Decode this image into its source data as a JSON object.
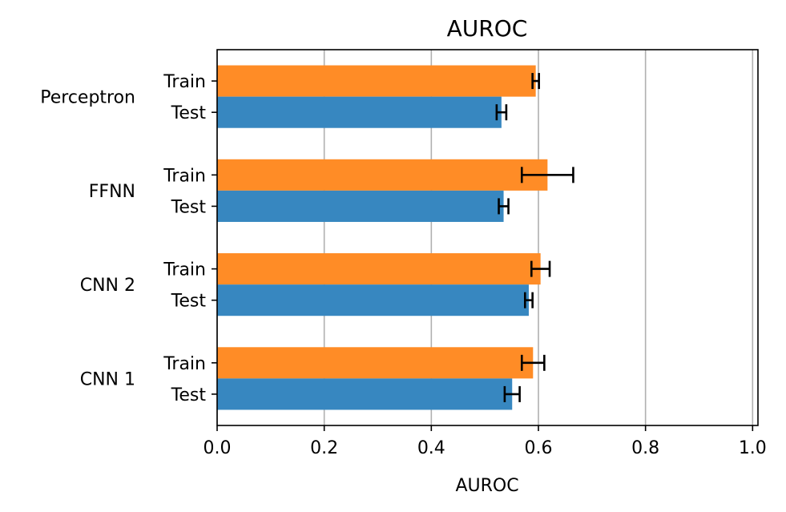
{
  "chart_data": {
    "type": "bar",
    "orientation": "horizontal",
    "title": "AUROC",
    "xlabel": "AUROC",
    "ylabel": "",
    "xlim": [
      0.0,
      1.01
    ],
    "xticks": [
      "0.0",
      "0.2",
      "0.4",
      "0.6",
      "0.8",
      "1.0"
    ],
    "xtick_values": [
      0.0,
      0.2,
      0.4,
      0.6,
      0.8,
      1.0
    ],
    "grid": "x",
    "legend": "none",
    "groups": [
      "Perceptron",
      "FFNN",
      "CNN 2",
      "CNN 1"
    ],
    "series": [
      {
        "label": "Train",
        "color": "#ff8c26",
        "values": [
          0.595,
          0.617,
          0.604,
          0.59
        ],
        "errors": [
          0.006,
          0.048,
          0.017,
          0.021
        ]
      },
      {
        "label": "Test",
        "color": "#3787c0",
        "values": [
          0.531,
          0.535,
          0.582,
          0.551
        ],
        "errors": [
          0.009,
          0.009,
          0.007,
          0.014
        ]
      }
    ],
    "errorbar_color": "#000000",
    "grid_color": "#b0b0b0"
  }
}
